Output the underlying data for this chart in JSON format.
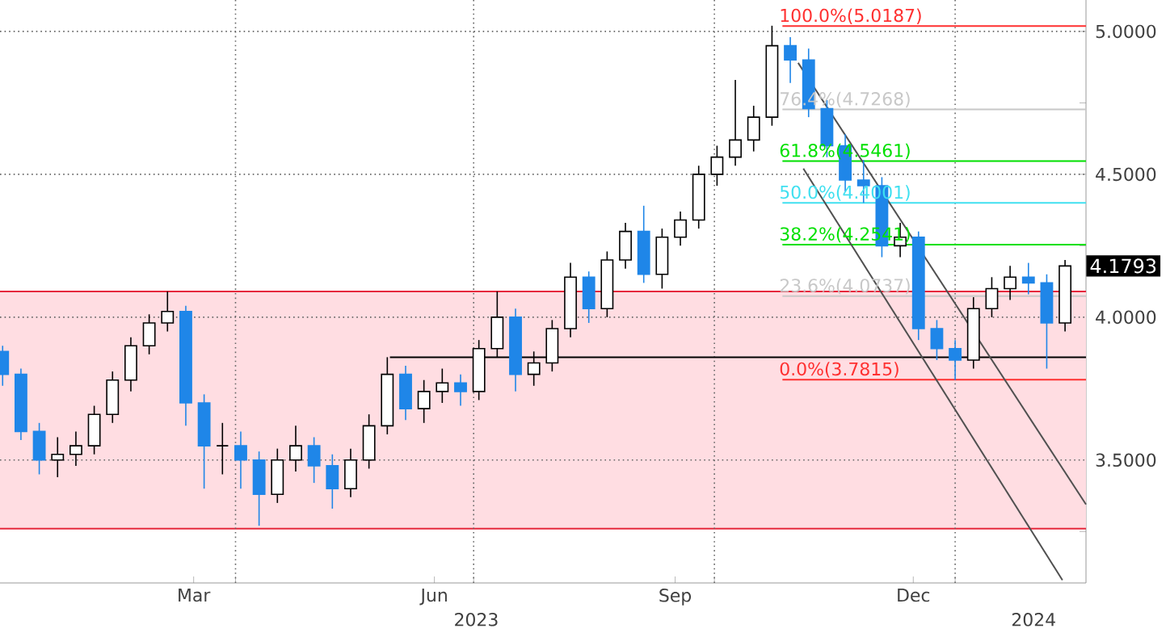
{
  "chart_data": {
    "type": "candlestick",
    "x": [
      "2023-01-02",
      "2023-01-09",
      "2023-01-16",
      "2023-01-23",
      "2023-01-30",
      "2023-02-06",
      "2023-02-13",
      "2023-02-20",
      "2023-02-27",
      "2023-03-06",
      "2023-03-13",
      "2023-03-20",
      "2023-03-27",
      "2023-04-03",
      "2023-04-10",
      "2023-04-17",
      "2023-04-24",
      "2023-05-01",
      "2023-05-08",
      "2023-05-15",
      "2023-05-22",
      "2023-05-29",
      "2023-06-05",
      "2023-06-12",
      "2023-06-19",
      "2023-06-26",
      "2023-07-03",
      "2023-07-10",
      "2023-07-17",
      "2023-07-24",
      "2023-07-31",
      "2023-08-07",
      "2023-08-14",
      "2023-08-21",
      "2023-08-28",
      "2023-09-04",
      "2023-09-11",
      "2023-09-18",
      "2023-09-25",
      "2023-10-02",
      "2023-10-09",
      "2023-10-16",
      "2023-10-23",
      "2023-10-30",
      "2023-11-06",
      "2023-11-13",
      "2023-11-20",
      "2023-11-27",
      "2023-12-04",
      "2023-12-11",
      "2023-12-18",
      "2023-12-25",
      "2024-01-01",
      "2024-01-08",
      "2024-01-15",
      "2024-01-22",
      "2024-01-29",
      "2024-02-05",
      "2024-02-12"
    ],
    "ohlc": [
      [
        3.88,
        3.9,
        3.76,
        3.8
      ],
      [
        3.8,
        3.82,
        3.57,
        3.6
      ],
      [
        3.6,
        3.63,
        3.45,
        3.5
      ],
      [
        3.5,
        3.58,
        3.44,
        3.52
      ],
      [
        3.52,
        3.6,
        3.48,
        3.55
      ],
      [
        3.55,
        3.69,
        3.52,
        3.66
      ],
      [
        3.66,
        3.81,
        3.63,
        3.78
      ],
      [
        3.78,
        3.93,
        3.74,
        3.9
      ],
      [
        3.9,
        4.01,
        3.87,
        3.98
      ],
      [
        3.98,
        4.09,
        3.95,
        4.02
      ],
      [
        4.02,
        4.04,
        3.62,
        3.7
      ],
      [
        3.7,
        3.73,
        3.4,
        3.55
      ],
      [
        3.55,
        3.63,
        3.45,
        3.55
      ],
      [
        3.55,
        3.6,
        3.4,
        3.5
      ],
      [
        3.5,
        3.53,
        3.27,
        3.38
      ],
      [
        3.38,
        3.54,
        3.35,
        3.5
      ],
      [
        3.5,
        3.62,
        3.46,
        3.55
      ],
      [
        3.55,
        3.58,
        3.42,
        3.48
      ],
      [
        3.48,
        3.52,
        3.33,
        3.4
      ],
      [
        3.4,
        3.54,
        3.37,
        3.5
      ],
      [
        3.5,
        3.66,
        3.47,
        3.62
      ],
      [
        3.62,
        3.86,
        3.59,
        3.8
      ],
      [
        3.8,
        3.83,
        3.64,
        3.68
      ],
      [
        3.68,
        3.78,
        3.63,
        3.74
      ],
      [
        3.74,
        3.82,
        3.7,
        3.77
      ],
      [
        3.77,
        3.8,
        3.69,
        3.74
      ],
      [
        3.74,
        3.92,
        3.71,
        3.89
      ],
      [
        3.89,
        4.09,
        3.86,
        4.0
      ],
      [
        4.0,
        4.03,
        3.74,
        3.8
      ],
      [
        3.8,
        3.88,
        3.76,
        3.84
      ],
      [
        3.84,
        3.99,
        3.81,
        3.96
      ],
      [
        3.96,
        4.19,
        3.93,
        4.14
      ],
      [
        4.14,
        4.16,
        3.98,
        4.03
      ],
      [
        4.03,
        4.23,
        4.0,
        4.2
      ],
      [
        4.2,
        4.33,
        4.17,
        4.3
      ],
      [
        4.3,
        4.39,
        4.12,
        4.15
      ],
      [
        4.15,
        4.31,
        4.1,
        4.28
      ],
      [
        4.28,
        4.37,
        4.25,
        4.34
      ],
      [
        4.34,
        4.53,
        4.31,
        4.5
      ],
      [
        4.5,
        4.6,
        4.46,
        4.56
      ],
      [
        4.56,
        4.83,
        4.53,
        4.62
      ],
      [
        4.62,
        4.74,
        4.58,
        4.7
      ],
      [
        4.7,
        5.02,
        4.67,
        4.95
      ],
      [
        4.95,
        4.98,
        4.82,
        4.9
      ],
      [
        4.9,
        4.94,
        4.7,
        4.73
      ],
      [
        4.73,
        4.76,
        4.56,
        4.6
      ],
      [
        4.6,
        4.64,
        4.44,
        4.48
      ],
      [
        4.48,
        4.55,
        4.4,
        4.46
      ],
      [
        4.46,
        4.49,
        4.21,
        4.25
      ],
      [
        4.25,
        4.33,
        4.21,
        4.28
      ],
      [
        4.28,
        4.3,
        3.92,
        3.96
      ],
      [
        3.96,
        3.99,
        3.85,
        3.89
      ],
      [
        3.89,
        3.92,
        3.78,
        3.85
      ],
      [
        3.85,
        4.07,
        3.82,
        4.03
      ],
      [
        4.03,
        4.14,
        4.0,
        4.1
      ],
      [
        4.1,
        4.18,
        4.06,
        4.14
      ],
      [
        4.14,
        4.19,
        4.08,
        4.12
      ],
      [
        4.12,
        4.15,
        3.82,
        3.98
      ],
      [
        3.98,
        4.2,
        3.95,
        4.1793
      ]
    ],
    "series": [
      {
        "type": "line",
        "color": "#ff3030",
        "x": [
          "2023-10-27",
          "2024-02-20"
        ],
        "values": [
          5.0187,
          5.0187
        ]
      },
      {
        "type": "line",
        "color": "#c8c8c8",
        "x": [
          "2023-10-27",
          "2024-02-20"
        ],
        "values": [
          4.7268,
          4.7268
        ]
      },
      {
        "type": "line",
        "color": "#00e000",
        "x": [
          "2023-10-27",
          "2024-02-20"
        ],
        "values": [
          4.5461,
          4.5461
        ]
      },
      {
        "type": "line",
        "color": "#40e0f0",
        "x": [
          "2023-10-27",
          "2024-02-20"
        ],
        "values": [
          4.4001,
          4.4001
        ]
      },
      {
        "type": "line",
        "color": "#00e000",
        "x": [
          "2023-10-27",
          "2024-02-20"
        ],
        "values": [
          4.2541,
          4.2541
        ]
      },
      {
        "type": "line",
        "color": "#c8c8c8",
        "x": [
          "2023-10-27",
          "2024-02-20"
        ],
        "values": [
          4.0737,
          4.0737
        ]
      },
      {
        "type": "line",
        "color": "#ff3030",
        "x": [
          "2023-10-27",
          "2024-02-20"
        ],
        "values": [
          3.7815,
          3.7815
        ]
      },
      {
        "type": "line",
        "color": "#000000",
        "x": [
          "2023-05-30",
          "2024-02-20"
        ],
        "values": [
          3.86,
          3.86
        ]
      },
      {
        "type": "line",
        "color": "#505050",
        "x": [
          "2023-11-02",
          "2024-02-20"
        ],
        "values": [
          4.89,
          3.345
        ]
      },
      {
        "type": "line",
        "color": "#505050",
        "x": [
          "2023-11-04",
          "2024-02-11"
        ],
        "values": [
          4.52,
          3.08
        ]
      }
    ],
    "bands": [
      {
        "axis": "y",
        "from": 3.26,
        "to": 4.09,
        "color": "#ffdde2"
      }
    ],
    "ref_lines": [
      {
        "axis": "y",
        "value": 3.26,
        "color": "#e6283c"
      },
      {
        "axis": "y",
        "value": 4.09,
        "color": "#e6283c"
      }
    ],
    "annotations": [
      {
        "text": "100.0%(5.0187)",
        "x": "2023-10-25",
        "y": 5.0187
      },
      {
        "text": "76.4%(4.7268)",
        "x": "2023-10-25",
        "y": 4.7268
      },
      {
        "text": "61.8%(4.5461)",
        "x": "2023-10-25",
        "y": 4.5461
      },
      {
        "text": "50.0%(4.4001)",
        "x": "2023-10-25",
        "y": 4.4001
      },
      {
        "text": "38.2%(4.2541)",
        "x": "2023-10-25",
        "y": 4.2541
      },
      {
        "text": "23.6%(4.0737)",
        "x": "2023-10-25",
        "y": 4.0737
      },
      {
        "text": "0.0%(3.7815)",
        "x": "2023-10-25",
        "y": 3.7815
      },
      "4.1793"
    ],
    "xlim": [
      "2023-01-01",
      "2024-02-20"
    ],
    "ylim": [
      3.07,
      5.11
    ],
    "xticks": [
      {
        "value": "2023-03-16",
        "label": "Mar"
      },
      {
        "value": "2023-06-16",
        "label": "Jun"
      },
      {
        "value": "2023-09-16",
        "label": "Sep"
      },
      {
        "value": "2023-12-16",
        "label": "Dec"
      },
      {
        "value": "2023-04-01",
        "label": null
      },
      {
        "value": "2023-07-01",
        "label": null
      },
      {
        "value": "2023-10-01",
        "label": null
      },
      {
        "value": "2024-01-01",
        "label": null
      }
    ],
    "x2lim": [
      "2023-01-01",
      "2024-02-20"
    ],
    "x2ticks": [
      {
        "value": "2023-07-02",
        "label": "2023"
      },
      {
        "value": "2024-01-31",
        "label": "2024"
      }
    ],
    "yticks": [
      {
        "value": 3.25,
        "label": null
      },
      {
        "value": 3.5,
        "label": "3.5000"
      },
      {
        "value": 3.75,
        "label": null
      },
      {
        "value": 4.0,
        "label": "4.0000"
      },
      {
        "value": 4.25,
        "label": null
      },
      {
        "value": 4.5,
        "label": "4.5000"
      },
      {
        "value": 4.75,
        "label": null
      },
      {
        "value": 5.0,
        "label": "5.0000"
      }
    ],
    "grid": true
  }
}
